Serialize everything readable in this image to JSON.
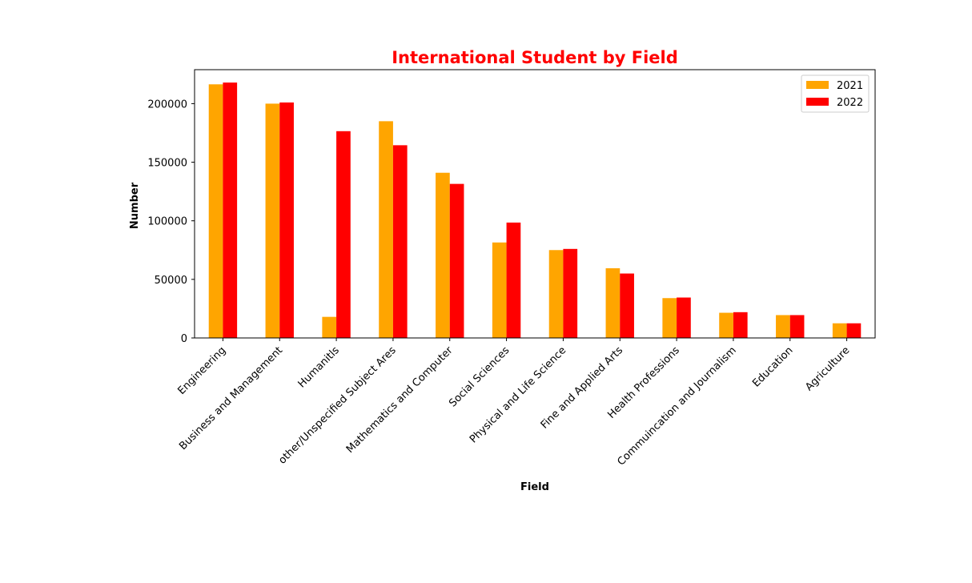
{
  "chart_data": {
    "type": "bar",
    "title": "International Student by Field",
    "xlabel": "Field",
    "ylabel": "Number",
    "ylim": [
      0,
      229000
    ],
    "yticks": [
      0,
      50000,
      100000,
      150000,
      200000
    ],
    "grid": false,
    "legend_position": "top-right",
    "categories": [
      "Engineering",
      "Business and Management",
      "Humanitls",
      "other/Unspecified Subject Ares",
      "Mathematics and Computer",
      "Social Sciences",
      "Physical and Life Science",
      "Fine and Applied Arts",
      "Health Professions",
      "Commuincation and Journalism",
      "Education",
      "Agriculture"
    ],
    "series": [
      {
        "name": "2021",
        "color": "#ffa500",
        "values": [
          216500,
          200000,
          18000,
          185000,
          141000,
          81500,
          75000,
          59500,
          34000,
          21500,
          19500,
          12500
        ]
      },
      {
        "name": "2022",
        "color": "#ff0000",
        "values": [
          218000,
          201000,
          176500,
          164500,
          131500,
          98500,
          76000,
          55000,
          34500,
          22000,
          19500,
          12500
        ]
      }
    ]
  }
}
